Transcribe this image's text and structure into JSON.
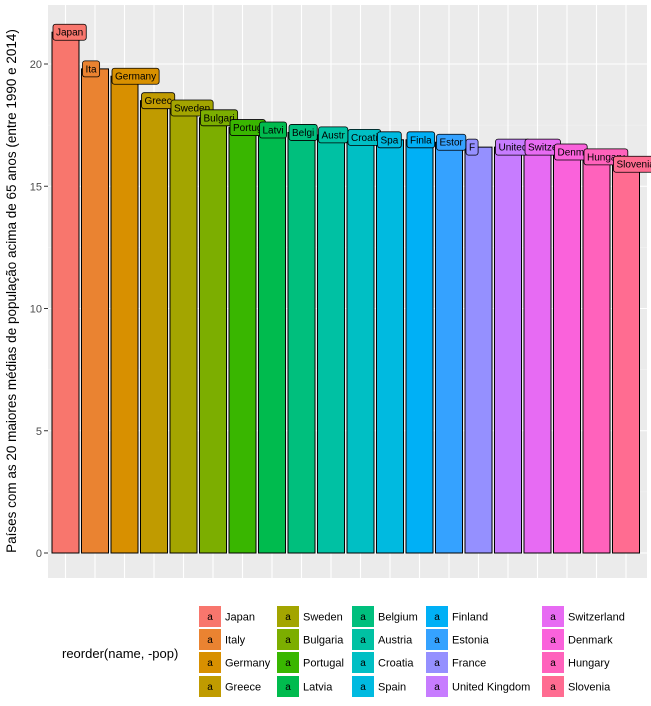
{
  "chart_data": {
    "type": "bar",
    "categories": [
      "Japan",
      "Italy",
      "Germany",
      "Greece",
      "Sweden",
      "Bulgaria",
      "Portugal",
      "Latvia",
      "Belgium",
      "Austria",
      "Croatia",
      "Spain",
      "Finland",
      "Estonia",
      "France",
      "United Kingdom",
      "Switzerland",
      "Denmark",
      "Hungary",
      "Slovenia"
    ],
    "values": [
      21.3,
      19.8,
      19.5,
      18.5,
      18.2,
      17.8,
      17.4,
      17.3,
      17.2,
      17.1,
      17.0,
      16.9,
      16.9,
      16.8,
      16.6,
      16.6,
      16.6,
      16.4,
      16.2,
      15.9
    ],
    "bar_labels": [
      "Japan",
      "Ita",
      "Germany",
      "Greec",
      "Sweden",
      "Bulgari",
      "Portug",
      "Latvi",
      "Belgi",
      "Austr",
      "Croati",
      "Spa",
      "Finla",
      "Estor",
      "F",
      "United",
      "Switze",
      "Denm",
      "Hungary",
      "Slovenia"
    ],
    "colors": [
      "#F8766D",
      "#EA8331",
      "#D89000",
      "#C09B00",
      "#A3A500",
      "#7CAE00",
      "#39B600",
      "#00BB4E",
      "#00BF7D",
      "#00C1A3",
      "#00BFC4",
      "#00BAE0",
      "#00B0F6",
      "#35A2FF",
      "#9590FF",
      "#C77CFF",
      "#E76BF3",
      "#FA62DB",
      "#FF62BC",
      "#FF6C91"
    ],
    "ylabel": "Países com as 20 maiores médias de população acima de 65 anos (entre 1990 e 2014)",
    "xlabel": "",
    "ylim": [
      0,
      22.5
    ],
    "yticks": [
      0,
      5,
      10,
      15,
      20
    ],
    "grid": true,
    "legend": {
      "title": "reorder(name, -pop)",
      "key_glyph": "a",
      "placement": "bottom"
    }
  }
}
